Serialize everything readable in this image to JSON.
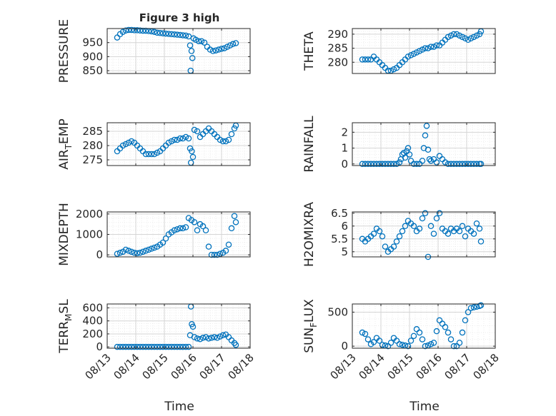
{
  "figure": {
    "title": "Figure 3 high",
    "marker_color": "#0072BD",
    "x_tick_labels": [
      "08/13",
      "08/14",
      "08/15",
      "08/16",
      "08/17",
      "08/18"
    ],
    "xlabel": "Time"
  },
  "chart_data": [
    {
      "type": "scatter",
      "ylabel": "PRESSURE",
      "ylim": [
        840,
        1000
      ],
      "yticks": [
        850,
        900,
        950
      ],
      "grid": true,
      "x": [
        13.35,
        13.45,
        13.55,
        13.65,
        13.75,
        13.85,
        13.95,
        14.05,
        14.15,
        14.25,
        14.35,
        14.45,
        14.55,
        14.65,
        14.75,
        14.85,
        14.95,
        15.05,
        15.15,
        15.25,
        15.35,
        15.45,
        15.55,
        15.65,
        15.75,
        15.85,
        15.9,
        15.92,
        15.95,
        15.98,
        16.02,
        16.1,
        16.2,
        16.3,
        16.4,
        16.5,
        16.6,
        16.7,
        16.8,
        16.9,
        17.0,
        17.1,
        17.2,
        17.3,
        17.4,
        17.5
      ],
      "y": [
        968,
        980,
        988,
        993,
        995,
        995,
        994,
        994,
        993,
        992,
        992,
        991,
        990,
        988,
        985,
        984,
        983,
        982,
        981,
        980,
        979,
        978,
        977,
        976,
        975,
        972,
        940,
        850,
        920,
        895,
        965,
        960,
        955,
        955,
        950,
        935,
        925,
        920,
        922,
        925,
        928,
        930,
        935,
        940,
        945,
        948
      ]
    },
    {
      "type": "scatter",
      "ylabel": "THETA",
      "ylim": [
        276,
        292
      ],
      "yticks": [
        280,
        285,
        290
      ],
      "grid": true,
      "x": [
        13.35,
        13.45,
        13.55,
        13.65,
        13.75,
        13.85,
        13.95,
        14.05,
        14.15,
        14.25,
        14.35,
        14.45,
        14.55,
        14.65,
        14.75,
        14.85,
        14.95,
        15.05,
        15.15,
        15.25,
        15.35,
        15.45,
        15.55,
        15.65,
        15.75,
        15.85,
        15.95,
        16.05,
        16.15,
        16.25,
        16.35,
        16.45,
        16.55,
        16.65,
        16.75,
        16.85,
        16.95,
        17.05,
        17.15,
        17.25,
        17.35,
        17.45,
        17.5
      ],
      "y": [
        281,
        281,
        281,
        281,
        282,
        281,
        280,
        279,
        278,
        277,
        277,
        277.5,
        278,
        279,
        280,
        281,
        282,
        282.5,
        283,
        283.5,
        284,
        284.5,
        285,
        285,
        285.5,
        285.5,
        286,
        286,
        287,
        288,
        289,
        289.5,
        290,
        290,
        289.5,
        289,
        288.5,
        288,
        288.5,
        289,
        289.5,
        290,
        291
      ]
    },
    {
      "type": "scatter",
      "ylabel": "AIR_TEMP",
      "ylim": [
        273,
        288
      ],
      "yticks": [
        275,
        280,
        285
      ],
      "grid": true,
      "x": [
        13.35,
        13.45,
        13.55,
        13.65,
        13.75,
        13.85,
        13.95,
        14.05,
        14.15,
        14.25,
        14.35,
        14.45,
        14.55,
        14.65,
        14.75,
        14.85,
        14.95,
        15.05,
        15.15,
        15.25,
        15.35,
        15.45,
        15.55,
        15.65,
        15.75,
        15.85,
        15.9,
        15.93,
        15.96,
        16.0,
        16.05,
        16.15,
        16.25,
        16.35,
        16.45,
        16.55,
        16.65,
        16.75,
        16.85,
        16.95,
        17.05,
        17.15,
        17.25,
        17.35,
        17.45,
        17.5
      ],
      "y": [
        278,
        279,
        280,
        280.5,
        281,
        281.5,
        281,
        280,
        279,
        278,
        277,
        277,
        277,
        277,
        277.5,
        278,
        279,
        280,
        281,
        281.5,
        282,
        282,
        282.5,
        282.5,
        283,
        282.5,
        279,
        274,
        278,
        276,
        285.5,
        285,
        283,
        284,
        285,
        286,
        285,
        284,
        283,
        282,
        281.5,
        281.5,
        282,
        284,
        286,
        287
      ]
    },
    {
      "type": "scatter",
      "ylabel": "RAINFALL",
      "ylim": [
        -0.1,
        2.6
      ],
      "yticks": [
        0,
        1,
        2
      ],
      "grid": true,
      "x": [
        13.35,
        13.45,
        13.55,
        13.65,
        13.75,
        13.85,
        13.95,
        14.05,
        14.15,
        14.25,
        14.35,
        14.45,
        14.55,
        14.65,
        14.7,
        14.75,
        14.8,
        14.85,
        14.9,
        14.95,
        15.0,
        15.05,
        15.15,
        15.25,
        15.35,
        15.45,
        15.5,
        15.55,
        15.6,
        15.65,
        15.7,
        15.75,
        15.85,
        15.95,
        16.05,
        16.15,
        16.25,
        16.35,
        16.45,
        16.55,
        16.65,
        16.75,
        16.85,
        16.95,
        17.05,
        17.15,
        17.25,
        17.35,
        17.45,
        17.5
      ],
      "y": [
        0,
        0,
        0,
        0,
        0,
        0,
        0,
        0,
        0,
        0,
        0,
        0,
        0,
        0.1,
        0.3,
        0.6,
        0.7,
        0.4,
        0.8,
        1.0,
        0.6,
        0.2,
        0,
        0,
        0,
        0.2,
        1.0,
        1.8,
        2.4,
        0.9,
        0.3,
        0.2,
        0.3,
        0.1,
        0.5,
        0.3,
        0.1,
        0,
        0,
        0,
        0,
        0,
        0,
        0,
        0,
        0,
        0,
        0,
        0,
        0
      ]
    },
    {
      "type": "scatter",
      "ylabel": "MIXDEPTH",
      "ylim": [
        -100,
        2100
      ],
      "yticks": [
        0,
        1000,
        2000
      ],
      "grid": true,
      "x": [
        13.35,
        13.45,
        13.55,
        13.65,
        13.75,
        13.85,
        13.95,
        14.05,
        14.15,
        14.25,
        14.35,
        14.45,
        14.55,
        14.65,
        14.75,
        14.85,
        14.95,
        15.05,
        15.15,
        15.25,
        15.35,
        15.45,
        15.55,
        15.65,
        15.75,
        15.85,
        15.95,
        16.05,
        16.15,
        16.25,
        16.35,
        16.45,
        16.55,
        16.65,
        16.75,
        16.85,
        16.95,
        17.05,
        17.15,
        17.25,
        17.35,
        17.45,
        17.5
      ],
      "y": [
        50,
        100,
        150,
        250,
        200,
        150,
        100,
        80,
        100,
        150,
        200,
        250,
        300,
        350,
        400,
        500,
        600,
        800,
        1000,
        1100,
        1200,
        1250,
        1300,
        1300,
        1350,
        1800,
        1700,
        1600,
        1200,
        1500,
        1400,
        1200,
        400,
        0,
        0,
        0,
        50,
        100,
        200,
        500,
        1300,
        1900,
        1600
      ]
    },
    {
      "type": "scatter",
      "ylabel": "H2OMIXRA",
      "ylim": [
        4.8,
        6.55
      ],
      "yticks": [
        5,
        5.5,
        6,
        6.5
      ],
      "grid": true,
      "x": [
        13.35,
        13.45,
        13.55,
        13.65,
        13.75,
        13.85,
        13.95,
        14.05,
        14.15,
        14.25,
        14.35,
        14.45,
        14.55,
        14.65,
        14.75,
        14.85,
        14.95,
        15.05,
        15.15,
        15.25,
        15.35,
        15.45,
        15.55,
        15.65,
        15.75,
        15.85,
        15.95,
        16.05,
        16.15,
        16.25,
        16.35,
        16.45,
        16.55,
        16.65,
        16.75,
        16.85,
        16.95,
        17.05,
        17.15,
        17.25,
        17.35,
        17.45,
        17.5
      ],
      "y": [
        5.5,
        5.4,
        5.5,
        5.6,
        5.7,
        5.9,
        5.8,
        5.6,
        5.2,
        5.0,
        5.1,
        5.2,
        5.4,
        5.6,
        5.8,
        6.0,
        6.2,
        6.1,
        6.0,
        5.8,
        5.9,
        6.3,
        6.5,
        4.8,
        6.0,
        5.7,
        6.3,
        6.5,
        5.9,
        5.8,
        5.7,
        5.9,
        5.8,
        5.9,
        5.8,
        6.0,
        5.6,
        5.9,
        5.8,
        5.7,
        6.1,
        5.9,
        5.4
      ]
    },
    {
      "type": "scatter",
      "ylabel": "TERR_MSL",
      "ylim": [
        -20,
        660
      ],
      "yticks": [
        0,
        200,
        400,
        600
      ],
      "grid": true,
      "x": [
        13.35,
        13.45,
        13.55,
        13.65,
        13.75,
        13.85,
        13.95,
        14.05,
        14.15,
        14.25,
        14.35,
        14.45,
        14.55,
        14.65,
        14.75,
        14.85,
        14.95,
        15.05,
        15.15,
        15.25,
        15.35,
        15.45,
        15.55,
        15.65,
        15.75,
        15.85,
        15.9,
        15.93,
        15.96,
        16.0,
        16.05,
        16.15,
        16.25,
        16.35,
        16.45,
        16.55,
        16.65,
        16.75,
        16.85,
        16.95,
        17.05,
        17.15,
        17.25,
        17.35,
        17.45,
        17.5
      ],
      "y": [
        0,
        0,
        0,
        0,
        0,
        0,
        0,
        0,
        0,
        0,
        0,
        0,
        0,
        0,
        0,
        0,
        0,
        0,
        0,
        0,
        0,
        0,
        0,
        0,
        0,
        0,
        180,
        620,
        350,
        310,
        150,
        130,
        120,
        140,
        150,
        130,
        140,
        150,
        140,
        160,
        180,
        190,
        150,
        100,
        60,
        30
      ]
    },
    {
      "type": "scatter",
      "ylabel": "SUN_FLUX",
      "ylim": [
        -30,
        620
      ],
      "yticks": [
        0,
        500
      ],
      "grid": true,
      "x": [
        13.35,
        13.45,
        13.55,
        13.65,
        13.75,
        13.85,
        13.95,
        14.05,
        14.15,
        14.25,
        14.35,
        14.45,
        14.55,
        14.65,
        14.75,
        14.85,
        14.95,
        15.05,
        15.15,
        15.25,
        15.35,
        15.45,
        15.55,
        15.65,
        15.75,
        15.85,
        15.95,
        16.05,
        16.15,
        16.25,
        16.35,
        16.45,
        16.55,
        16.65,
        16.75,
        16.85,
        16.95,
        17.05,
        17.15,
        17.25,
        17.35,
        17.45,
        17.5
      ],
      "y": [
        200,
        180,
        100,
        30,
        60,
        120,
        80,
        20,
        10,
        0,
        50,
        120,
        80,
        30,
        20,
        10,
        0,
        80,
        150,
        250,
        200,
        100,
        0,
        10,
        30,
        50,
        220,
        380,
        330,
        280,
        200,
        100,
        0,
        0,
        50,
        200,
        380,
        500,
        560,
        570,
        580,
        590,
        600
      ]
    }
  ]
}
